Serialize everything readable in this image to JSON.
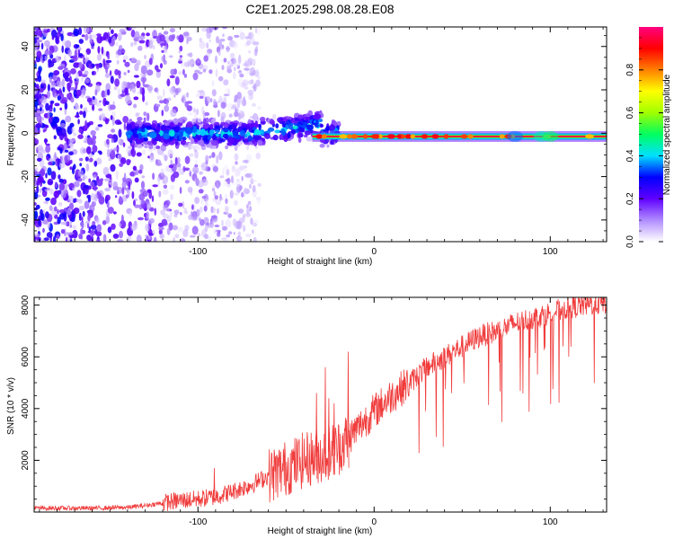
{
  "title": "C2E1.2025.298.08.28.E08",
  "chart_data": [
    {
      "type": "heatmap",
      "title": "C2E1.2025.298.08.28.E08",
      "xlabel": "Height of straight line (km)",
      "ylabel": "Frequency (Hz)",
      "xlim": [
        -193,
        132
      ],
      "ylim": [
        -50,
        49
      ],
      "xticks": [
        -100,
        0,
        100
      ],
      "yticks": [
        -40,
        -20,
        0,
        20,
        40
      ],
      "colorbar": {
        "label": "Normalized spectral amplitude",
        "range": [
          0.0,
          1.0
        ],
        "ticks": [
          0.0,
          0.2,
          0.4,
          0.6,
          0.8
        ],
        "tick_labels": [
          "0.0",
          "0.2",
          "0.4",
          "0.6",
          "0.8"
        ],
        "colors": [
          "#ffffff",
          "#b08cff",
          "#6000ff",
          "#0000ff",
          "#00e0ff",
          "#00ff60",
          "#a0ff00",
          "#ffff00",
          "#ff8000",
          "#ff0000",
          "#ff0080"
        ]
      },
      "features": [
        {
          "name": "broadband noise",
          "x_range": [
            -193,
            -65
          ],
          "freq_range": [
            -50,
            49
          ],
          "amplitude": 0.15
        },
        {
          "name": "signal band",
          "x_range": [
            -140,
            -20
          ],
          "freq_center": 0,
          "freq_halfwidth": 6,
          "amplitude": 0.3
        },
        {
          "name": "stable tone",
          "x_range": [
            -35,
            132
          ],
          "freq_center": -1.5,
          "amplitude": 0.95
        }
      ]
    },
    {
      "type": "line",
      "xlabel": "Height of straight line (km)",
      "ylabel": "SNR (10 * v/v)",
      "xlim": [
        -193,
        132
      ],
      "ylim": [
        0,
        8300
      ],
      "xticks": [
        -100,
        0,
        100
      ],
      "yticks": [
        2000,
        4000,
        6000,
        8000
      ],
      "color": "#f03c3c",
      "series": [
        {
          "name": "SNR",
          "x": [
            -193,
            -180,
            -160,
            -140,
            -130,
            -120,
            -110,
            -100,
            -90,
            -80,
            -70,
            -60,
            -50,
            -40,
            -30,
            -20,
            -10,
            0,
            10,
            20,
            30,
            40,
            50,
            60,
            70,
            80,
            90,
            100,
            110,
            120,
            132
          ],
          "values": [
            150,
            150,
            150,
            180,
            250,
            350,
            450,
            500,
            600,
            800,
            1050,
            1400,
            1700,
            2000,
            2200,
            2500,
            3200,
            3900,
            4500,
            5000,
            5600,
            6000,
            6400,
            6800,
            7000,
            7300,
            7500,
            7700,
            7900,
            8000,
            8100
          ]
        }
      ],
      "spikes": [
        {
          "x": -33,
          "y": 4600
        },
        {
          "x": -28,
          "y": 5600
        },
        {
          "x": -26,
          "y": 4400
        },
        {
          "x": -23,
          "y": 4200
        },
        {
          "x": -15,
          "y": 6200
        },
        {
          "x": -91,
          "y": 1700
        }
      ]
    }
  ]
}
